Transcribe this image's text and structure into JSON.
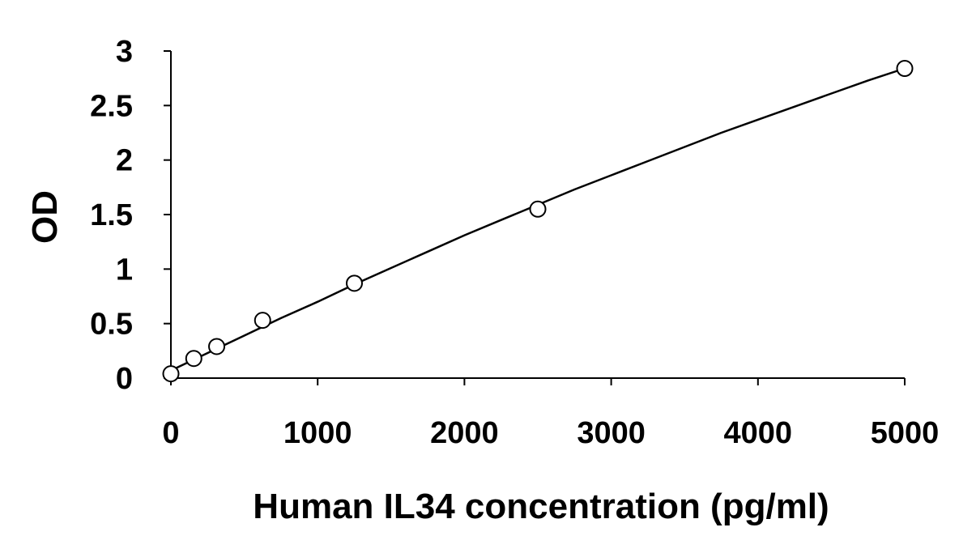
{
  "chart_data": {
    "type": "scatter",
    "title": "",
    "xlabel": "Human IL34 concentration (pg/ml)",
    "ylabel": "OD",
    "xlim": [
      0,
      5000
    ],
    "ylim": [
      0,
      3
    ],
    "xticks": [
      0,
      1000,
      2000,
      3000,
      4000,
      5000
    ],
    "xtick_labels": [
      "0",
      "1000",
      "2000",
      "3000",
      "4000",
      "5000"
    ],
    "yticks": [
      0,
      0.5,
      1,
      1.5,
      2,
      2.5,
      3
    ],
    "ytick_labels": [
      "0",
      "0.5",
      "1",
      "1.5",
      "2",
      "2.5",
      "3"
    ],
    "grid": false,
    "legend": "none",
    "series": [
      {
        "style": "open-circle-markers",
        "x": [
          0,
          156,
          312,
          625,
          1250,
          2500,
          5000
        ],
        "y": [
          0.04,
          0.18,
          0.29,
          0.53,
          0.87,
          1.55,
          2.84
        ]
      }
    ],
    "fit_curve": {
      "style": "solid-line",
      "x": [
        0,
        250,
        500,
        750,
        1000,
        1250,
        1500,
        1750,
        2000,
        2250,
        2500,
        2750,
        3000,
        3250,
        3500,
        3750,
        4000,
        4250,
        4500,
        4750,
        5000
      ],
      "y": [
        0.07,
        0.23,
        0.39,
        0.55,
        0.7,
        0.86,
        1.01,
        1.16,
        1.31,
        1.45,
        1.59,
        1.73,
        1.86,
        1.99,
        2.12,
        2.25,
        2.37,
        2.49,
        2.61,
        2.73,
        2.84
      ]
    },
    "colors": {
      "axis": "#000000",
      "marker_fill": "#ffffff",
      "marker_stroke": "#000000",
      "line": "#000000"
    }
  }
}
